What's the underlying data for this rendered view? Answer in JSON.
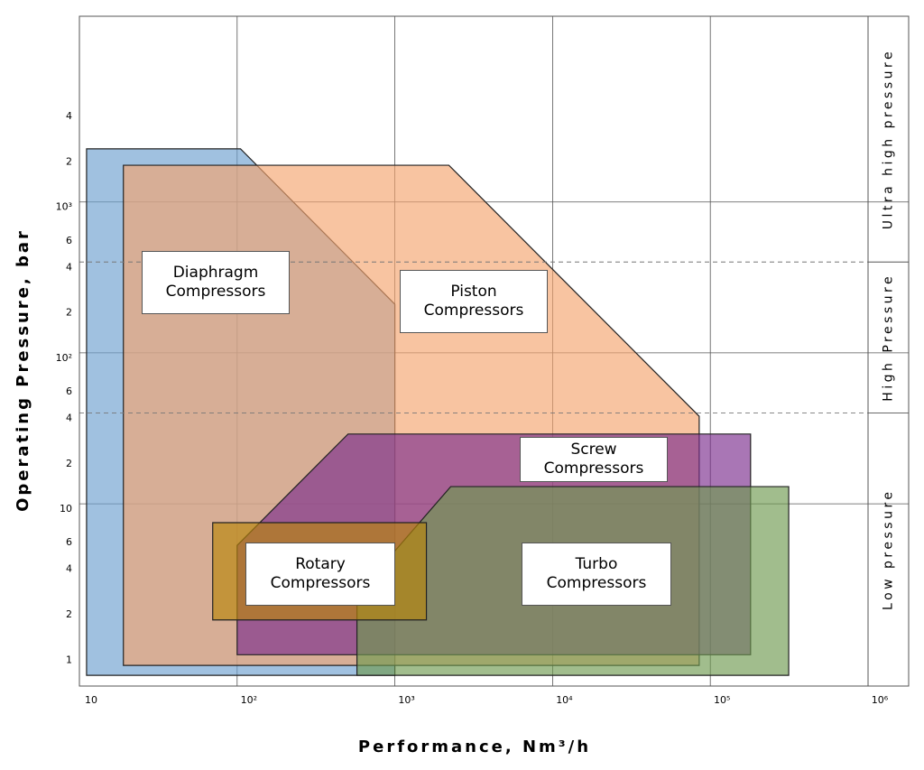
{
  "chart_data": {
    "type": "range-map",
    "xlabel": "Performance, Nm³/h",
    "ylabel": "Operating Pressure, bar",
    "xscale": "log",
    "yscale": "log",
    "grid": true,
    "xlim": [
      10,
      1000000
    ],
    "ylim": [
      0.62,
      17000
    ],
    "xticks": [
      10,
      {
        "value": 100,
        "label": "10²"
      },
      {
        "value": 1000,
        "label": "10³"
      },
      {
        "value": 10000,
        "label": "10⁴"
      },
      {
        "value": 100000,
        "label": "10⁵"
      },
      {
        "value": 1000000,
        "label": "10⁶"
      }
    ],
    "yticks": [
      1,
      2,
      4,
      6,
      10,
      {
        "value": 20,
        "label": "2"
      },
      {
        "value": 40,
        "label": "4"
      },
      {
        "value": 60,
        "label": "6"
      },
      {
        "value": 100,
        "label": "10²"
      },
      {
        "value": 200,
        "label": "2"
      },
      {
        "value": 400,
        "label": "4"
      },
      {
        "value": 600,
        "label": "6"
      },
      {
        "value": 1000,
        "label": "10³"
      },
      {
        "value": 2000,
        "label": "2"
      },
      {
        "value": 4000,
        "label": "4"
      }
    ],
    "regions": [
      {
        "name": "Low pressure",
        "ylim": [
          0.62,
          40
        ]
      },
      {
        "name": "High Pressure",
        "ylim": [
          40,
          400
        ]
      },
      {
        "name": "Ultra high pressure",
        "ylim": [
          400,
          17000
        ]
      }
    ],
    "series": [
      {
        "name": "Diaphragm Compressors",
        "color": "#6d9fd0",
        "x": [
          11.1,
          105,
          1000,
          1000,
          11.1
        ],
        "y": [
          2250,
          2250,
          210,
          0.73,
          0.73
        ]
      },
      {
        "name": "Piston Compressors",
        "color": "#f4a46e",
        "x": [
          19,
          2200,
          85000,
          85000,
          19
        ],
        "y": [
          1750,
          1750,
          38,
          0.85,
          0.85
        ]
      },
      {
        "name": "Screw Compressors",
        "color": "#7b2d8e",
        "x": [
          100,
          505,
          180000,
          180000,
          100
        ],
        "y": [
          5.3,
          29,
          29,
          1.0,
          1.0
        ]
      },
      {
        "name": "Turbo Compressors",
        "color": "#6f9a50",
        "x": [
          575,
          575,
          2260,
          314000,
          314000
        ],
        "y": [
          0.73,
          2.5,
          13,
          13,
          0.73
        ]
      },
      {
        "name": "Rotary Compressors",
        "color": "#b8860b",
        "x": [
          70,
          1585,
          1585,
          70
        ],
        "y": [
          7.5,
          7.5,
          1.7,
          1.7
        ]
      }
    ]
  }
}
